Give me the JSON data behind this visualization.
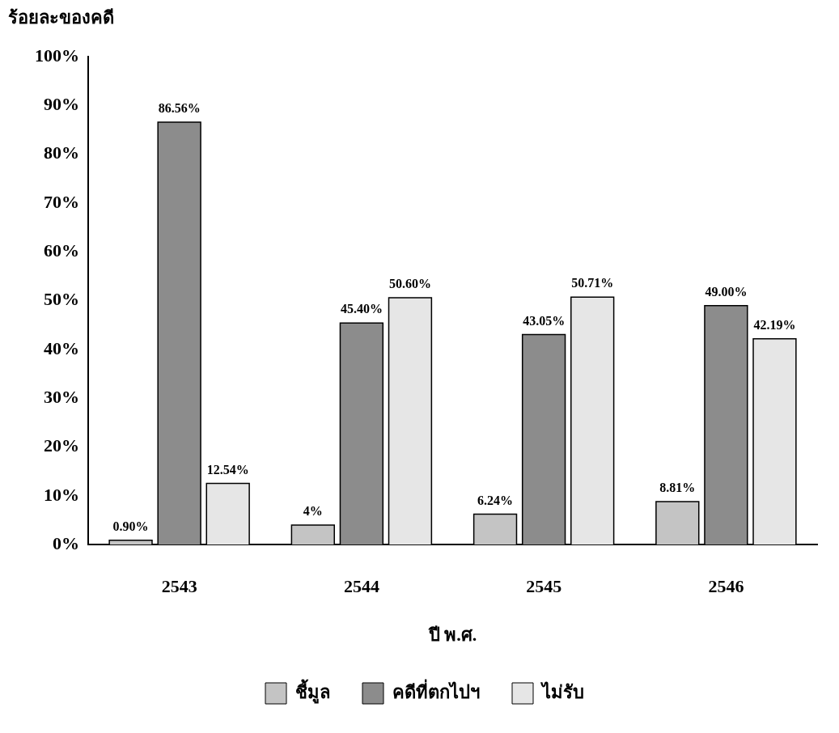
{
  "chart_data": {
    "type": "bar",
    "ylabel": "ร้อยละของคดี",
    "xlabel": "ปี พ.ศ.",
    "categories": [
      "2543",
      "2544",
      "2545",
      "2546"
    ],
    "series": [
      {
        "name": "ชี้มูล",
        "color": "#c4c4c4",
        "values": [
          0.9,
          4,
          6.24,
          8.81
        ],
        "value_labels": [
          "0.90%",
          "4%",
          "6.24%",
          "8.81%"
        ]
      },
      {
        "name": "คดีที่ตกไปฯ",
        "color": "#8c8c8c",
        "values": [
          86.56,
          45.4,
          43.05,
          49.0
        ],
        "value_labels": [
          "86.56%",
          "45.40%",
          "43.05%",
          "49.00%"
        ]
      },
      {
        "name": "ไม่รับ",
        "color": "#e6e6e6",
        "values": [
          12.54,
          50.6,
          50.71,
          42.19
        ],
        "value_labels": [
          "12.54%",
          "50.60%",
          "50.71%",
          "42.19%"
        ]
      }
    ],
    "ylim": [
      0,
      100
    ],
    "yticks": [
      {
        "value": 0,
        "label": "0%"
      },
      {
        "value": 10,
        "label": "10%"
      },
      {
        "value": 20,
        "label": "20%"
      },
      {
        "value": 30,
        "label": "30%"
      },
      {
        "value": 40,
        "label": "40%"
      },
      {
        "value": 50,
        "label": "50%"
      },
      {
        "value": 60,
        "label": "60%"
      },
      {
        "value": 70,
        "label": "70%"
      },
      {
        "value": 80,
        "label": "80%"
      },
      {
        "value": 90,
        "label": "90%"
      },
      {
        "value": 100,
        "label": "100%"
      }
    ],
    "grid": false,
    "legend": "bottom"
  }
}
